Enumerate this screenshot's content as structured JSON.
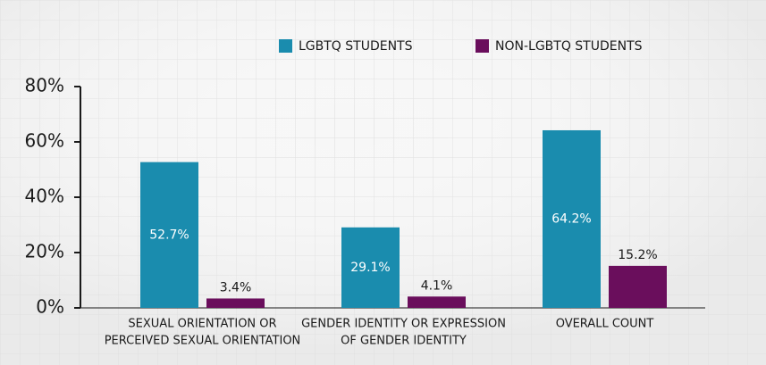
{
  "chart_data": {
    "type": "bar",
    "categories": [
      [
        "SEXUAL ORIENTATION OR",
        "PERCEIVED SEXUAL ORIENTATION"
      ],
      [
        "GENDER IDENTITY OR EXPRESSION",
        "OF GENDER IDENTITY"
      ],
      [
        "OVERALL COUNT"
      ]
    ],
    "series": [
      {
        "name": "LGBTQ STUDENTS",
        "color": "#1a8cae",
        "values": [
          52.7,
          29.1,
          64.2
        ],
        "value_labels": [
          "52.7%",
          "29.1%",
          "64.2%"
        ]
      },
      {
        "name": "NON-LGBTQ STUDENTS",
        "color": "#6a0e5c",
        "values": [
          3.4,
          4.1,
          15.2
        ],
        "value_labels": [
          "3.4%",
          "4.1%",
          "15.2%"
        ]
      }
    ],
    "ylim": [
      0,
      80
    ],
    "yticks": [
      {
        "value": 0,
        "label": "0%"
      },
      {
        "value": 20,
        "label": "20%"
      },
      {
        "value": 40,
        "label": "40%"
      },
      {
        "value": 60,
        "label": "60%"
      },
      {
        "value": 80,
        "label": "80%"
      }
    ],
    "legend": "top"
  }
}
